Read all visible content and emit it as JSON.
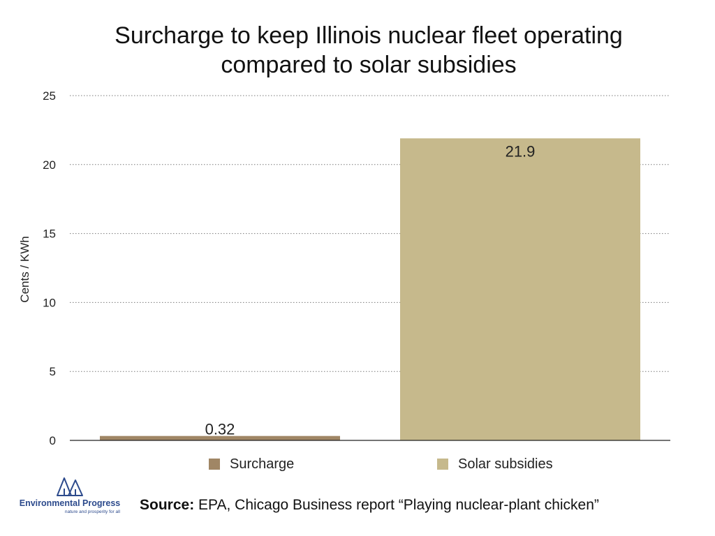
{
  "title_lines": [
    "Surcharge to keep Illinois nuclear fleet operating",
    "compared to solar subsidies"
  ],
  "source": {
    "label": "Source:",
    "text": " EPA, Chicago Business report “Playing nuclear-plant chicken”"
  },
  "logo": {
    "name": "Environmental Progress",
    "tagline": "nature and prosperity for all"
  },
  "colors": {
    "surcharge": "#a08665",
    "solar": "#c6b98c",
    "grid": "#7a7a7a",
    "logo": "#2c4a8c"
  },
  "chart_data": {
    "type": "bar",
    "categories": [
      "Surcharge",
      "Solar subsidies"
    ],
    "values": [
      0.32,
      21.9
    ],
    "value_labels": [
      "0.32",
      "21.9"
    ],
    "title": "Surcharge to keep Illinois nuclear fleet operating compared to solar subsidies",
    "xlabel": "",
    "ylabel": "Cents / KWh",
    "ylim": [
      0,
      25
    ],
    "yticks": [
      0,
      5,
      10,
      15,
      20,
      25
    ],
    "grid": true,
    "legend": {
      "position": "bottom",
      "entries": [
        "Surcharge",
        "Solar subsidies"
      ]
    }
  }
}
